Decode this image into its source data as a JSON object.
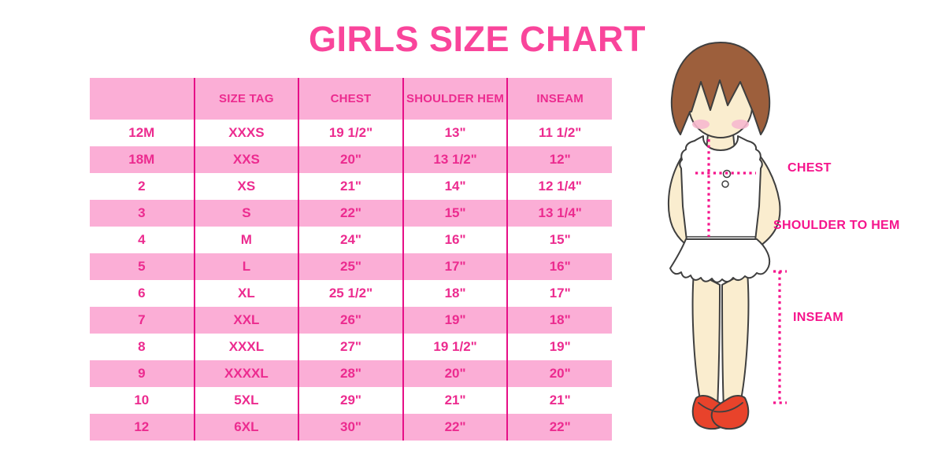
{
  "title": "GIRLS SIZE CHART",
  "figure": {
    "labels": {
      "chest": "CHEST",
      "shoulder_to_hem": "SHOULDER TO HEM",
      "inseam": "INSEAM"
    }
  },
  "colors": {
    "title_pink": "#F9459B",
    "table_text_magenta": "#EC2B8F",
    "row_pink": "#FBAED6",
    "separator_magenta": "#E60F87",
    "measure_line_pink": "#F5148C",
    "hair_brown": "#9D5F3C",
    "skin": "#FAEDCF",
    "shoe_red": "#E8432B"
  },
  "chart_data": {
    "type": "table",
    "title": "GIRLS SIZE CHART",
    "columns": [
      "",
      "SIZE TAG",
      "CHEST",
      "SHOULDER HEM",
      "INSEAM"
    ],
    "rows": [
      [
        "12M",
        "XXXS",
        "19 1/2\"",
        "13\"",
        "11 1/2\""
      ],
      [
        "18M",
        "XXS",
        "20\"",
        "13 1/2\"",
        "12\""
      ],
      [
        "2",
        "XS",
        "21\"",
        "14\"",
        "12 1/4\""
      ],
      [
        "3",
        "S",
        "22\"",
        "15\"",
        "13 1/4\""
      ],
      [
        "4",
        "M",
        "24\"",
        "16\"",
        "15\""
      ],
      [
        "5",
        "L",
        "25\"",
        "17\"",
        "16\""
      ],
      [
        "6",
        "XL",
        "25 1/2\"",
        "18\"",
        "17\""
      ],
      [
        "7",
        "XXL",
        "26\"",
        "19\"",
        "18\""
      ],
      [
        "8",
        "XXXL",
        "27\"",
        "19 1/2\"",
        "19\""
      ],
      [
        "9",
        "XXXXL",
        "28\"",
        "20\"",
        "20\""
      ],
      [
        "10",
        "5XL",
        "29\"",
        "21\"",
        "21\""
      ],
      [
        "12",
        "6XL",
        "30\"",
        "22\"",
        "22\""
      ]
    ]
  }
}
